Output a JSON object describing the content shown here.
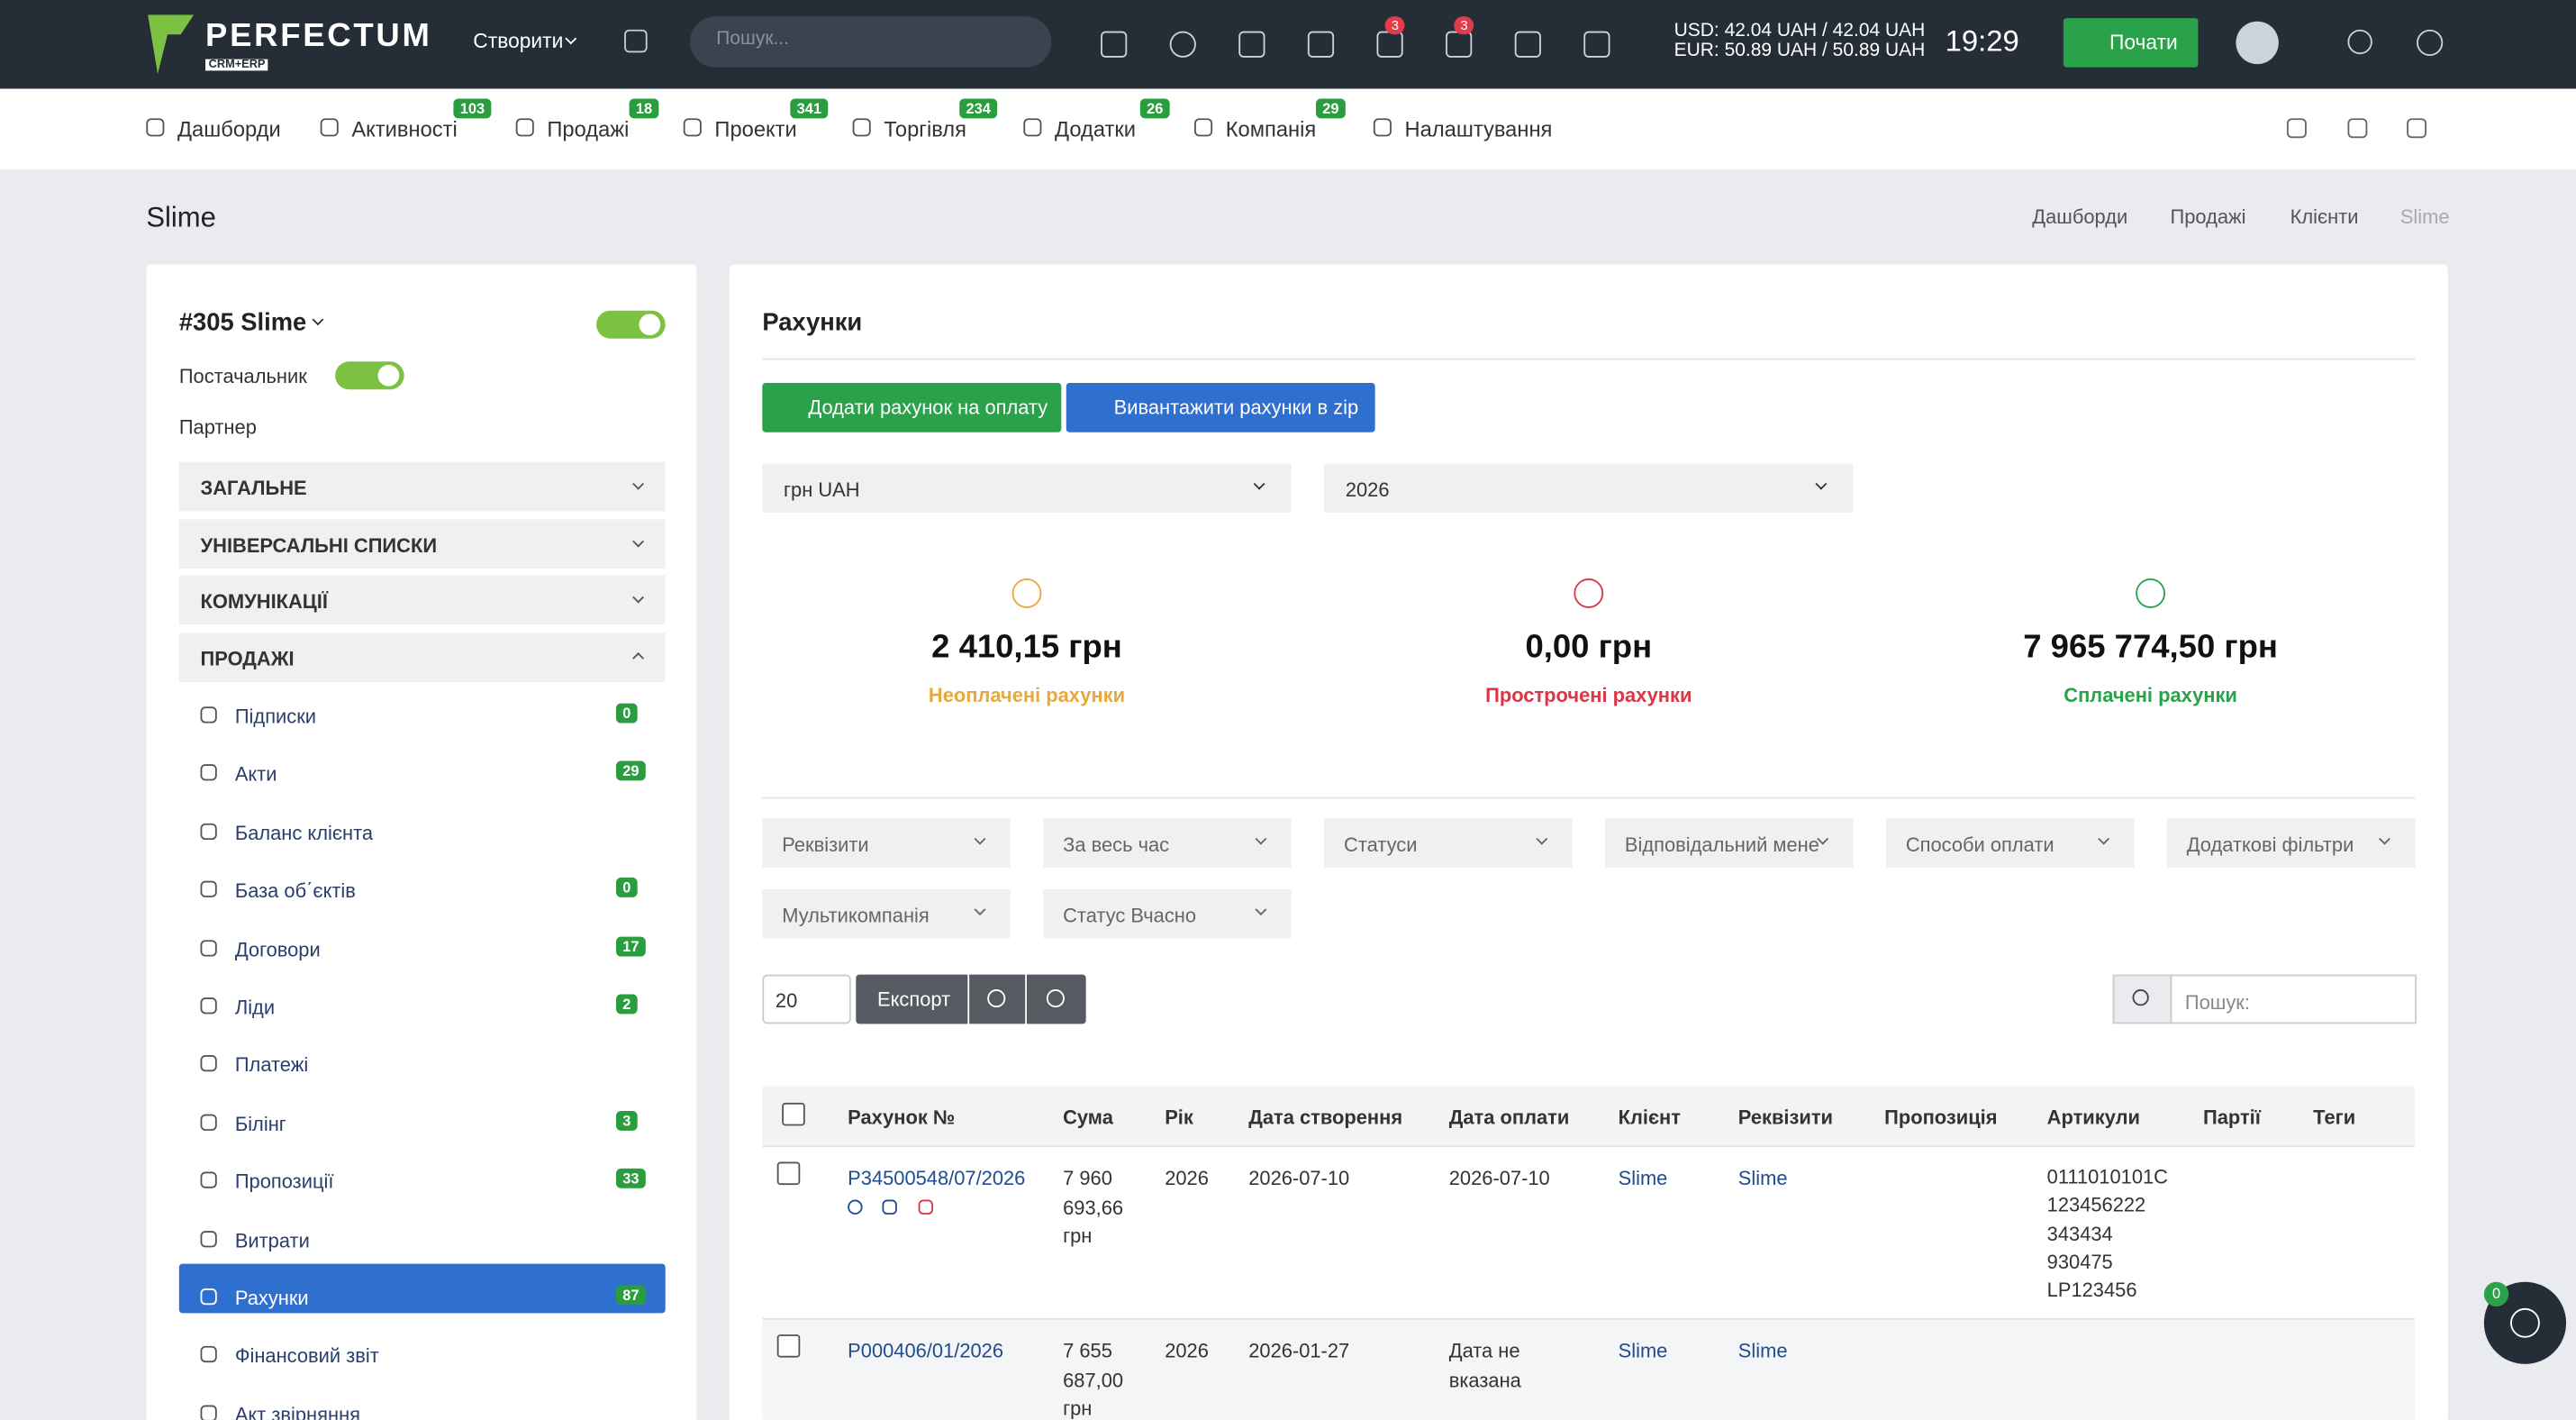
{
  "header": {
    "logo": "PERFECTUM",
    "logo_sub": "CRM+ERP",
    "create": "Створити",
    "search": "Пошук...",
    "badges": [
      3,
      3
    ],
    "rates": [
      "USD: 42.04 UAH / 42.04 UAH",
      "EUR: 50.89 UAH / 50.89 UAH"
    ],
    "time": "19:29",
    "start": "Почати"
  },
  "nav": [
    {
      "label": "Дашборди"
    },
    {
      "label": "Активності",
      "badge": 103
    },
    {
      "label": "Продажі",
      "badge": 18
    },
    {
      "label": "Проекти",
      "badge": 341
    },
    {
      "label": "Торгівля",
      "badge": 234
    },
    {
      "label": "Додатки",
      "badge": 26
    },
    {
      "label": "Компанія",
      "badge": 29
    },
    {
      "label": "Налаштування"
    }
  ],
  "page_title": "Slime",
  "breadcrumbs": [
    "Дашборди",
    "Продажі",
    "Клієнти",
    "Slime"
  ],
  "sidebar": {
    "title": "#305 Slime",
    "supplier": "Постачальник",
    "partner": "Партнер",
    "sections": [
      "ЗАГАЛЬНЕ",
      "УНІВЕРСАЛЬНІ СПИСКИ",
      "КОМУНІКАЦІЇ",
      "ПРОДАЖІ"
    ],
    "items": [
      {
        "label": "Підписки",
        "badge": 0
      },
      {
        "label": "Акти",
        "badge": 29
      },
      {
        "label": "Баланс клієнта"
      },
      {
        "label": "База об΄єктів",
        "badge": 0
      },
      {
        "label": "Договори",
        "badge": 17
      },
      {
        "label": "Ліди",
        "badge": 2
      },
      {
        "label": "Платежі"
      },
      {
        "label": "Білінг",
        "badge": 3
      },
      {
        "label": "Пропозиції",
        "badge": 33
      },
      {
        "label": "Витрати"
      },
      {
        "label": "Рахунки",
        "badge": 87
      },
      {
        "label": "Фінансовий звіт"
      },
      {
        "label": "Акт звірняння"
      }
    ]
  },
  "main": {
    "title": "Рахунки",
    "buttons": [
      "Додати рахунок на оплату",
      "Вивантажити рахунки в zip"
    ],
    "selects": [
      "грн UAH",
      "2026"
    ],
    "stats": [
      {
        "value": "2 410,15 грн",
        "label": "Неоплачені рахунки"
      },
      {
        "value": "0,00 грн",
        "label": "Прострочені рахунки"
      },
      {
        "value": "7 965 774,50 грн",
        "label": "Сплачені рахунки"
      }
    ],
    "filters": [
      "Реквізити",
      "За весь час",
      "Статуси",
      "Відповідальний мене",
      "Способи оплати",
      "Додаткові фільтри",
      "Мультикомпанія",
      "Статус Вчасно"
    ],
    "per_page": "20",
    "export": "Експорт",
    "search": "Пошук:",
    "table": {
      "headers": [
        "Рахунок №",
        "Сума",
        "Рік",
        "Дата створення",
        "Дата оплати",
        "Клієнт",
        "Реквізити",
        "Пропозиція",
        "Артикули",
        "Партії",
        "Теги"
      ],
      "rows": [
        [
          "P34500548/07/2026",
          "7 960 693,66 грн",
          "2026",
          "2026-07-10",
          "2026-07-10",
          "Slime",
          "Slime",
          "",
          [
            "0111010101C",
            "123456222",
            "343434",
            "930475",
            "LP123456"
          ],
          "",
          ""
        ],
        [
          "P000406/01/2026",
          "7 655 687,00 грн",
          "2026",
          "2026-01-27",
          "Дата не вказана",
          "Slime",
          "Slime",
          "",
          [],
          "",
          ""
        ]
      ]
    }
  },
  "chat_badge": 0
}
